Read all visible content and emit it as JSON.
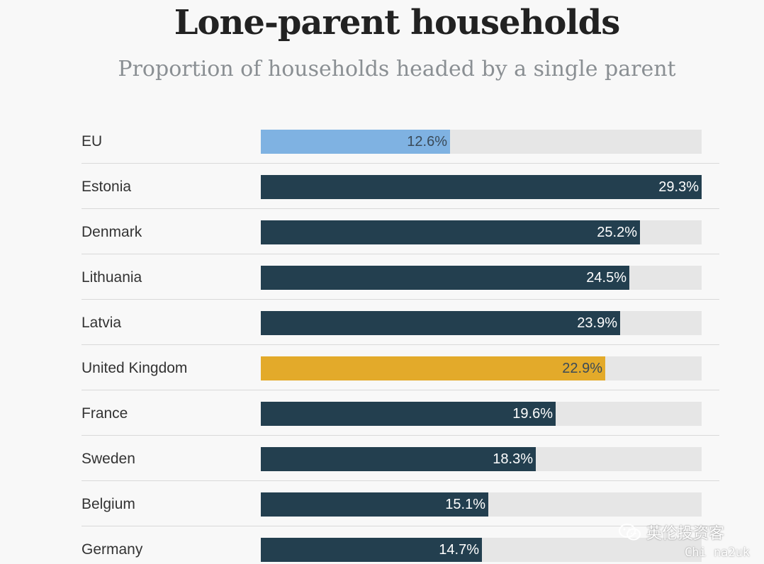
{
  "chart_data": {
    "type": "bar",
    "orientation": "horizontal",
    "title": "Lone-parent households",
    "subtitle": "Proportion of households headed by a single parent",
    "categories": [
      "EU",
      "Estonia",
      "Denmark",
      "Lithuania",
      "Latvia",
      "United Kingdom",
      "France",
      "Sweden",
      "Belgium",
      "Germany"
    ],
    "values": [
      12.6,
      29.3,
      25.2,
      24.5,
      23.9,
      22.9,
      19.6,
      18.3,
      15.1,
      14.7
    ],
    "value_labels": [
      "12.6%",
      "29.3%",
      "25.2%",
      "24.5%",
      "23.9%",
      "22.9%",
      "19.6%",
      "18.3%",
      "15.1%",
      "14.7%"
    ],
    "xlim": [
      0,
      29.3
    ],
    "grid": false,
    "legend": "none",
    "colors": {
      "default": "#233f4f",
      "highlight_eu": "#7fb2e2",
      "highlight_uk": "#e3aa2a",
      "track": "#e6e6e6",
      "label_on_dark": "#ffffff",
      "label_on_light": "#3a4a58"
    },
    "bar_colors": [
      "#7fb2e2",
      "#233f4f",
      "#233f4f",
      "#233f4f",
      "#233f4f",
      "#e3aa2a",
      "#233f4f",
      "#233f4f",
      "#233f4f",
      "#233f4f"
    ],
    "label_colors": [
      "#3a4a58",
      "#ffffff",
      "#ffffff",
      "#ffffff",
      "#ffffff",
      "#3a4a58",
      "#ffffff",
      "#ffffff",
      "#ffffff",
      "#ffffff"
    ]
  },
  "watermark": {
    "icon": "wechat-icon",
    "text": "英伦投资客",
    "subtext": "Chi na2uk"
  }
}
